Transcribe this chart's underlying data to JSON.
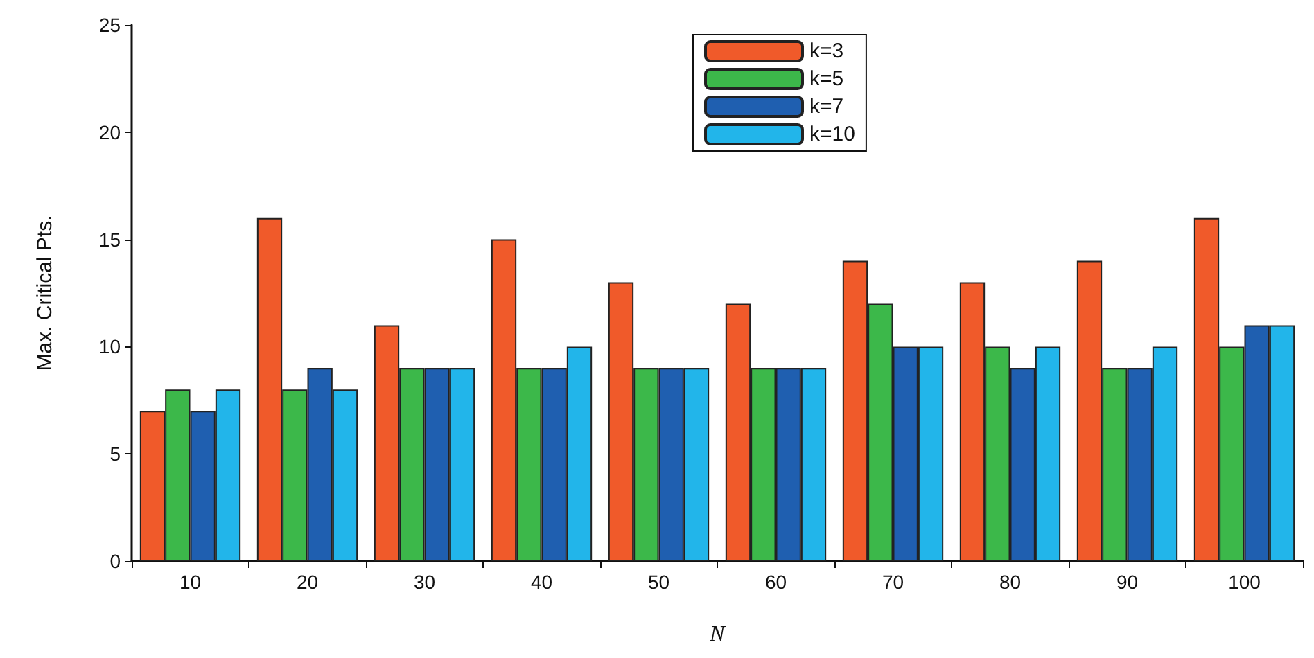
{
  "chart_data": {
    "type": "bar",
    "xlabel": "N",
    "ylabel": "Max. Critical Pts.",
    "categories": [
      "10",
      "20",
      "30",
      "40",
      "50",
      "60",
      "70",
      "80",
      "90",
      "100"
    ],
    "series": [
      {
        "name": "k=3",
        "color": "#f05a2a",
        "values": [
          7,
          16,
          11,
          15,
          13,
          12,
          14,
          13,
          14,
          16
        ]
      },
      {
        "name": "k=5",
        "color": "#3cb84a",
        "values": [
          8,
          8,
          9,
          9,
          9,
          9,
          12,
          10,
          9,
          10
        ]
      },
      {
        "name": "k=7",
        "color": "#1f5fb0",
        "values": [
          7,
          9,
          9,
          9,
          9,
          9,
          10,
          9,
          9,
          11
        ]
      },
      {
        "name": "k=10",
        "color": "#22b5ea",
        "values": [
          8,
          8,
          9,
          10,
          9,
          9,
          10,
          10,
          10,
          11
        ]
      }
    ],
    "ylim": [
      0,
      25
    ],
    "yticks": [
      0,
      5,
      10,
      15,
      20,
      25
    ],
    "grid": false,
    "legend": "top"
  }
}
